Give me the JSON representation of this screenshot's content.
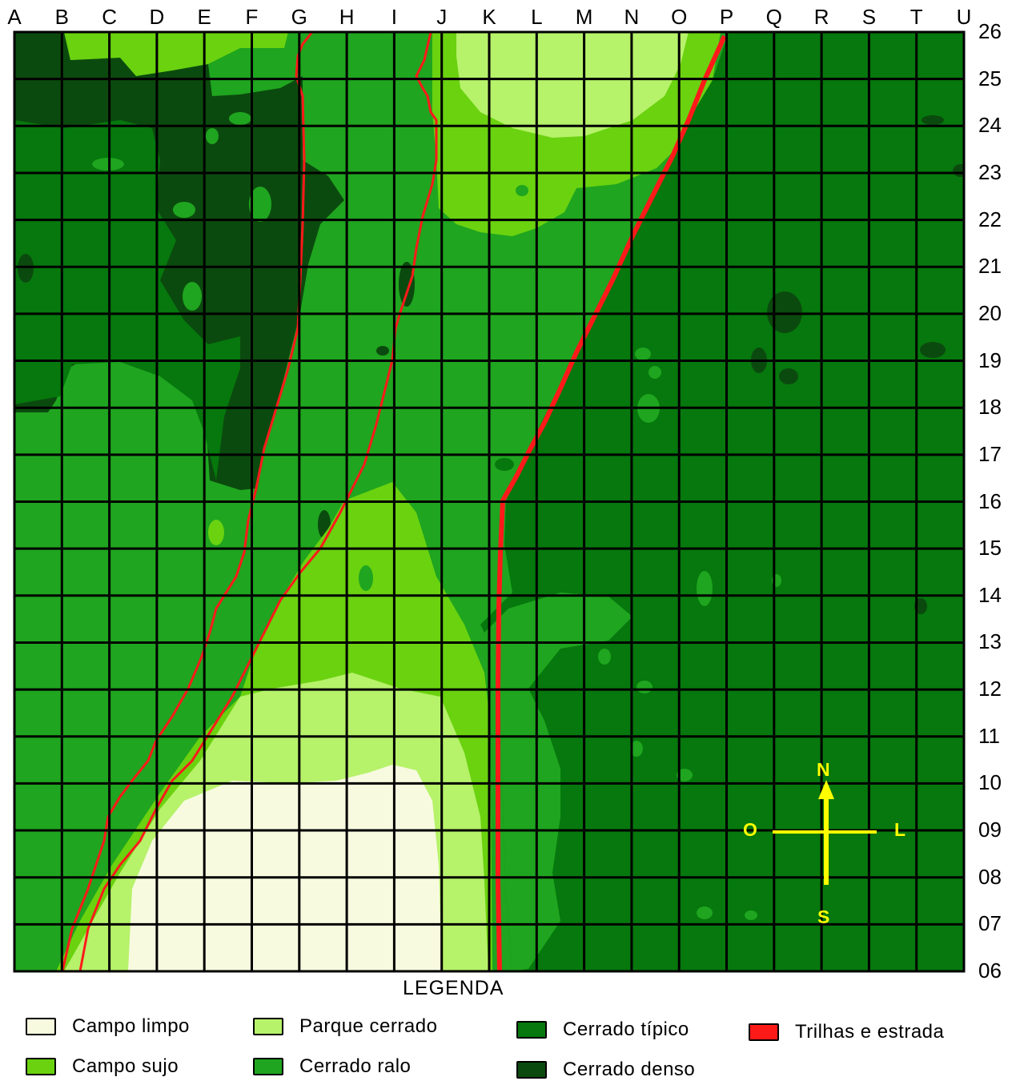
{
  "columns": [
    "A",
    "B",
    "C",
    "D",
    "E",
    "F",
    "G",
    "H",
    "I",
    "J",
    "K",
    "L",
    "M",
    "N",
    "O",
    "P",
    "Q",
    "R",
    "S",
    "T",
    "U"
  ],
  "rows": [
    "26",
    "25",
    "24",
    "23",
    "22",
    "21",
    "20",
    "19",
    "18",
    "17",
    "16",
    "15",
    "14",
    "13",
    "12",
    "11",
    "10",
    "09",
    "08",
    "07",
    "06"
  ],
  "compass": {
    "north": "N",
    "south": "S",
    "west": "O",
    "east": "L"
  },
  "legend": {
    "title": "LEGENDA",
    "items": [
      {
        "label": "Campo limpo",
        "color": "#f7fadf"
      },
      {
        "label": "Campo sujo",
        "color": "#6ad20f"
      },
      {
        "label": "Parque cerrado",
        "color": "#b6f26a"
      },
      {
        "label": "Cerrado ralo",
        "color": "#1fa51f"
      },
      {
        "label": "Cerrado típico",
        "color": "#06780d"
      },
      {
        "label": "Cerrado denso",
        "color": "#0b4a0e"
      },
      {
        "label": "Trilhas e estrada",
        "color": "#ff1a1a"
      }
    ]
  },
  "colors": {
    "grid": "#000000",
    "compass": "#ffff00"
  }
}
